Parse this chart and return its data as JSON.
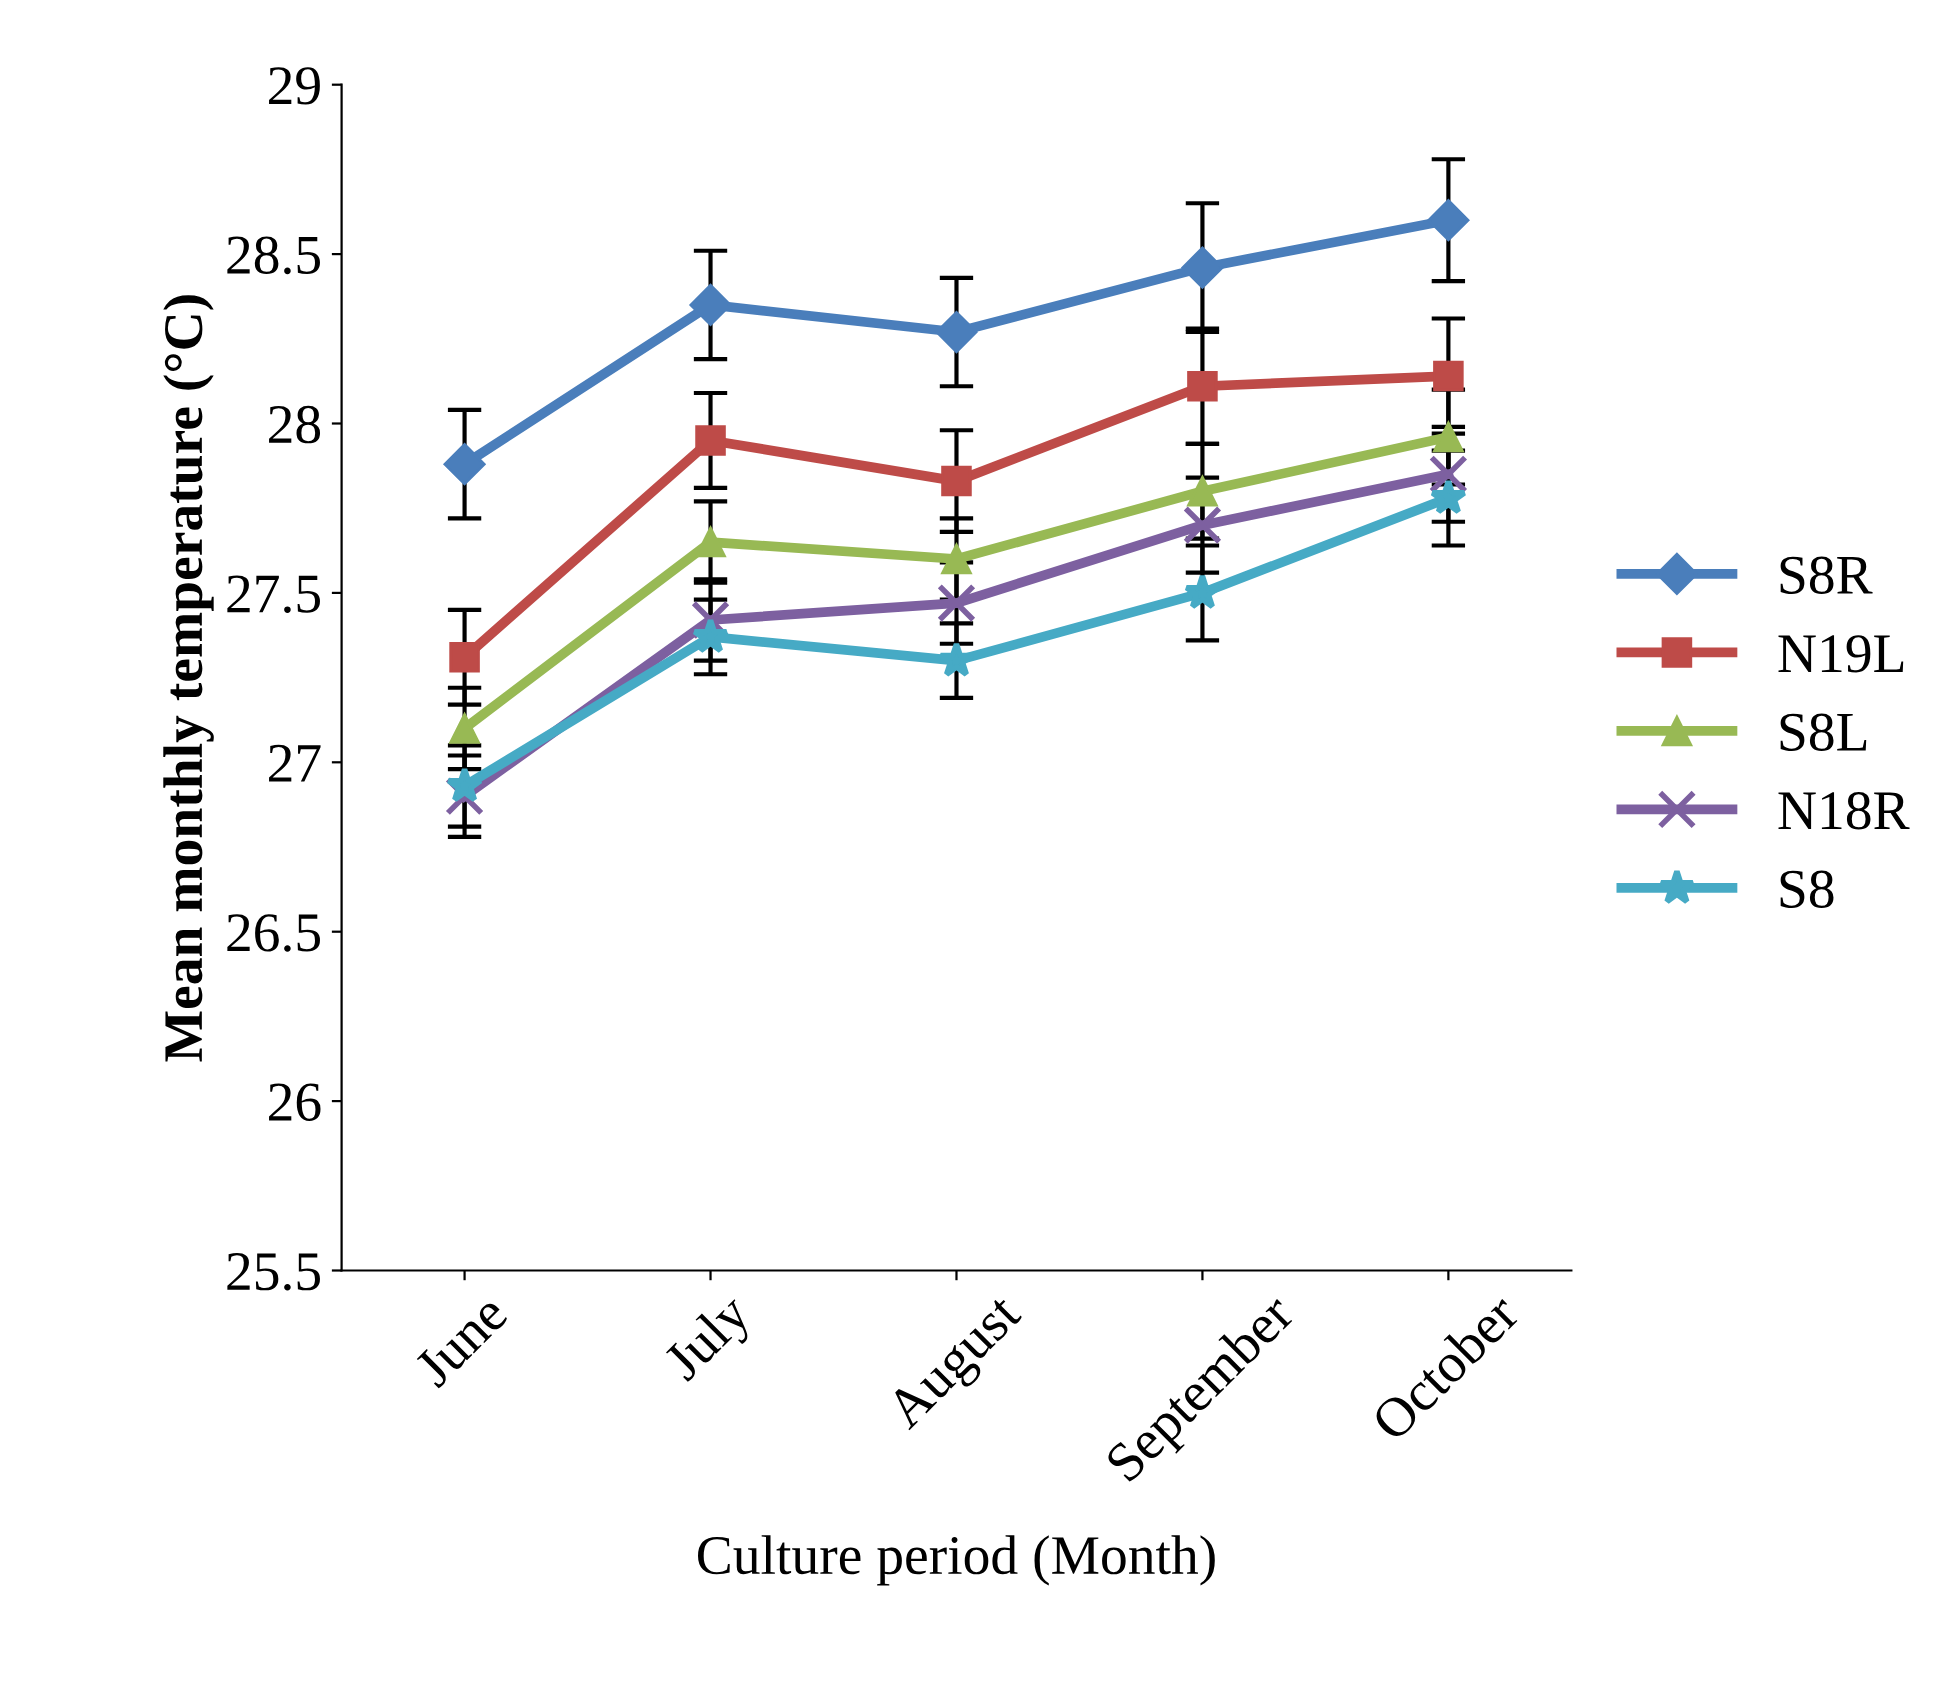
{
  "chart_data": {
    "type": "line",
    "xlabel": "Culture period (Month)",
    "ylabel": "Mean monthly temperature (°C)",
    "categories": [
      "June",
      "July",
      "August",
      "September",
      "October"
    ],
    "series": [
      {
        "name": "S8R",
        "color": "#4a7ebb",
        "marker": "diamond",
        "values": [
          27.88,
          28.35,
          28.27,
          28.46,
          28.6
        ],
        "errors": [
          0.16,
          0.16,
          0.16,
          0.19,
          0.18
        ]
      },
      {
        "name": "N19L",
        "color": "#be4b48",
        "marker": "square",
        "values": [
          27.31,
          27.95,
          27.83,
          28.11,
          28.14
        ],
        "errors": [
          0.14,
          0.14,
          0.15,
          0.17,
          0.17
        ]
      },
      {
        "name": "S8L",
        "color": "#98b954",
        "marker": "triangle",
        "values": [
          27.1,
          27.65,
          27.6,
          27.8,
          27.96
        ],
        "errors": [
          0.12,
          0.12,
          0.12,
          0.14,
          0.14
        ]
      },
      {
        "name": "N18R",
        "color": "#7d60a0",
        "marker": "cross",
        "values": [
          26.9,
          27.42,
          27.47,
          27.7,
          27.85
        ],
        "errors": [
          0.12,
          0.12,
          0.12,
          0.14,
          0.14
        ]
      },
      {
        "name": "S8",
        "color": "#46aac5",
        "marker": "star",
        "values": [
          26.93,
          27.37,
          27.3,
          27.5,
          27.78
        ],
        "errors": [
          0.12,
          0.11,
          0.11,
          0.14,
          0.14
        ]
      }
    ],
    "ylim": [
      25.5,
      29
    ],
    "yticks": [
      25.5,
      26,
      26.5,
      27,
      27.5,
      28,
      28.5,
      29
    ],
    "grid": false,
    "legend": "right"
  }
}
